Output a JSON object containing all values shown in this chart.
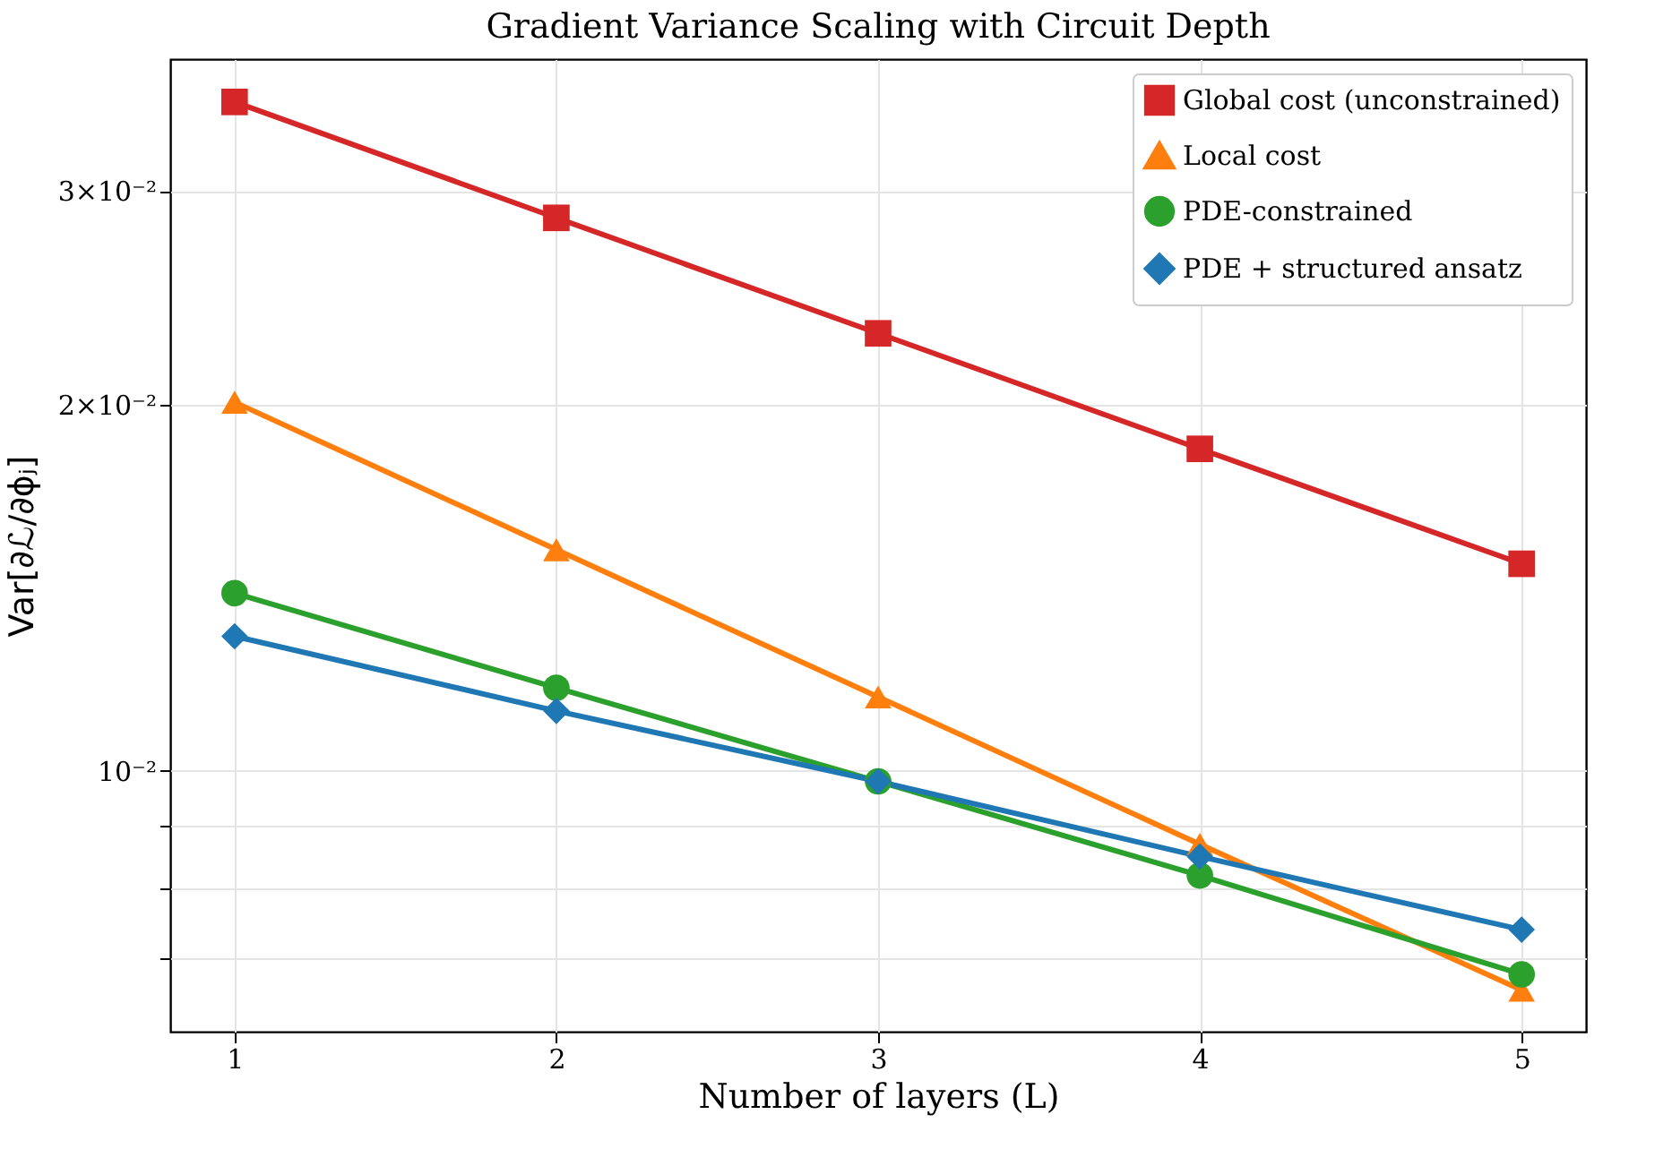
{
  "chart_data": {
    "type": "line",
    "title": "Gradient Variance Scaling with Circuit Depth",
    "xlabel": "Number of layers (L)",
    "ylabel": "Var[∂ℒ/∂ϕⱼ]",
    "x": [
      1,
      2,
      3,
      4,
      5
    ],
    "series": [
      {
        "name": "Global cost (unconstrained)",
        "color": "#d62728",
        "marker": "square",
        "values": [
          0.0355,
          0.0285,
          0.0229,
          0.0184,
          0.0148
        ]
      },
      {
        "name": "Local cost",
        "color": "#ff7f0e",
        "marker": "triangle",
        "values": [
          0.0201,
          0.0152,
          0.0115,
          0.0087,
          0.0066
        ]
      },
      {
        "name": "PDE-constrained",
        "color": "#2ca02c",
        "marker": "circle",
        "values": [
          0.014,
          0.0117,
          0.0098,
          0.0082,
          0.0068
        ]
      },
      {
        "name": "PDE + structured ansatz",
        "color": "#1f77b4",
        "marker": "diamond",
        "values": [
          0.0129,
          0.0112,
          0.0098,
          0.0085,
          0.0074
        ]
      }
    ],
    "log": "y",
    "xlim": [
      0.8,
      5.2
    ],
    "xticks": [
      1,
      2,
      3,
      4,
      5
    ],
    "ylim": [
      0.0061,
      0.0385
    ],
    "yticks": [
      {
        "value": 0.007,
        "label": null
      },
      {
        "value": 0.008,
        "label": null
      },
      {
        "value": 0.009,
        "label": null
      },
      {
        "value": 0.01,
        "label": "10⁻²"
      },
      {
        "value": 0.02,
        "label": "2×10⁻²"
      },
      {
        "value": 0.03,
        "label": "3×10⁻²"
      }
    ],
    "grid": true,
    "legend": "top right",
    "line_style": "solid"
  }
}
